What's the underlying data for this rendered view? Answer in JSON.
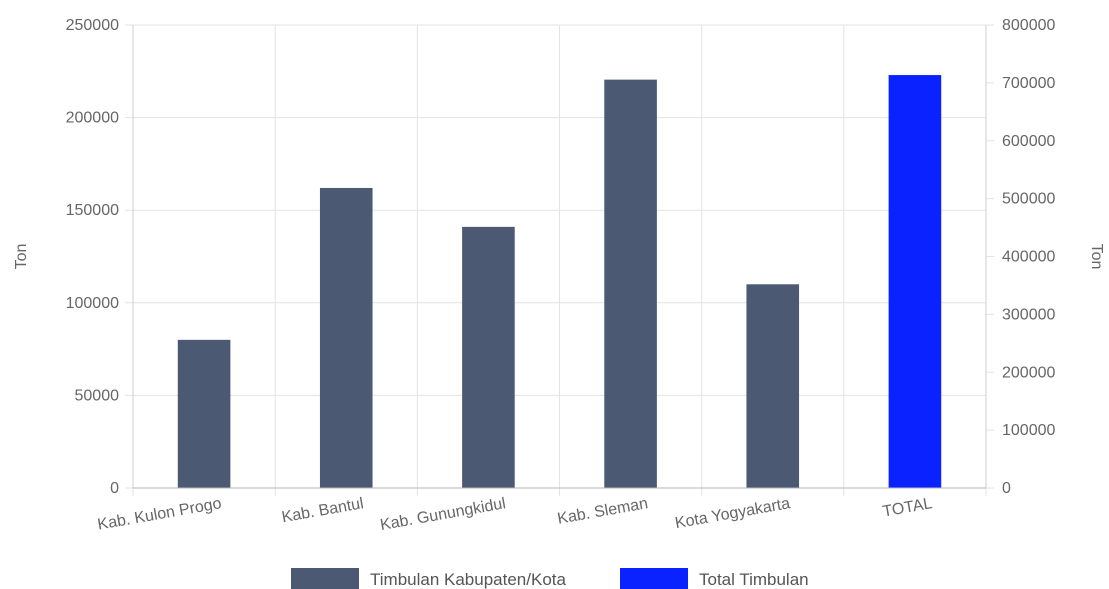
{
  "chart_data": {
    "type": "bar",
    "categories": [
      "Kab. Kulon Progo",
      "Kab. Bantul",
      "Kab. Gunungkidul",
      "Kab. Sleman",
      "Kota Yogyakarta",
      "TOTAL"
    ],
    "series": [
      {
        "name": "Timbulan Kabupaten/Kota",
        "color": "#4b5a72",
        "axis": "left",
        "values": [
          80000,
          162000,
          141000,
          220500,
          110000,
          null
        ]
      },
      {
        "name": "Total Timbulan",
        "color": "#0a22ff",
        "axis": "right",
        "values": [
          null,
          null,
          null,
          null,
          null,
          713500
        ]
      }
    ],
    "y_left": {
      "label": "Ton",
      "min": 0,
      "max": 250000,
      "ticks": [
        0,
        50000,
        100000,
        150000,
        200000,
        250000
      ]
    },
    "y_right": {
      "label": "Ton",
      "min": 0,
      "max": 800000,
      "ticks": [
        0,
        100000,
        200000,
        300000,
        400000,
        500000,
        600000,
        700000,
        800000
      ]
    },
    "grid": true,
    "legend_position": "bottom"
  }
}
